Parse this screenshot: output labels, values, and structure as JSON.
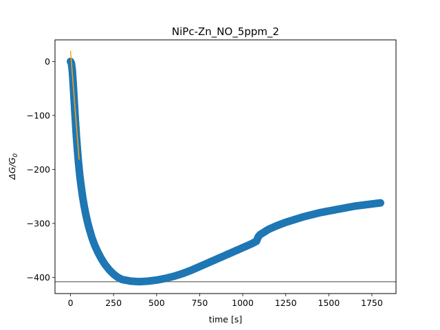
{
  "chart_data": {
    "type": "scatter",
    "title": "NiPc-Zn_NO_5ppm_2",
    "xlabel": "time [s]",
    "ylabel_main": "ΔG/G",
    "ylabel_sub": "0",
    "xlim": [
      -90,
      1890
    ],
    "ylim": [
      -430,
      40
    ],
    "x_ticks": [
      0,
      250,
      500,
      750,
      1000,
      1250,
      1500,
      1750
    ],
    "x_tick_labels": [
      "0",
      "250",
      "500",
      "750",
      "1000",
      "1250",
      "1500",
      "1750"
    ],
    "y_ticks": [
      0,
      -100,
      -200,
      -300,
      -400
    ],
    "y_tick_labels": [
      "0",
      "−100",
      "−200",
      "−300",
      "−400"
    ],
    "grid": false,
    "series": [
      {
        "kind": "scatter",
        "color": "#1f77b4",
        "x": [
          0,
          5,
          10,
          15,
          20,
          25,
          30,
          35,
          40,
          45,
          50,
          55,
          60,
          70,
          80,
          90,
          100,
          110,
          125,
          140,
          160,
          180,
          200,
          225,
          250,
          275,
          300,
          350,
          400,
          450,
          500,
          550,
          600,
          650,
          700,
          750,
          800,
          850,
          900,
          950,
          1000,
          1050,
          1080,
          1090,
          1100,
          1125,
          1150,
          1200,
          1250,
          1300,
          1350,
          1400,
          1450,
          1500,
          1550,
          1600,
          1650,
          1700,
          1750,
          1800
        ],
        "y": [
          0,
          -3,
          -15,
          -38,
          -65,
          -92,
          -118,
          -142,
          -163,
          -182,
          -199,
          -214,
          -227,
          -250,
          -269,
          -285,
          -299,
          -311,
          -327,
          -340,
          -354,
          -366,
          -376,
          -386,
          -394,
          -400,
          -404,
          -407,
          -408,
          -407,
          -405,
          -402,
          -398,
          -393,
          -387,
          -380,
          -373,
          -366,
          -359,
          -352,
          -345,
          -338,
          -333,
          -325,
          -321,
          -316,
          -311,
          -304,
          -298,
          -293,
          -288,
          -284,
          -280,
          -277,
          -274,
          -271,
          -268,
          -266,
          -264,
          -262
        ]
      },
      {
        "kind": "line",
        "color": "#ffa500",
        "x": [
          0,
          50
        ],
        "y": [
          20,
          -182
        ]
      },
      {
        "kind": "hline",
        "color": "#808080",
        "y": -408
      }
    ]
  }
}
